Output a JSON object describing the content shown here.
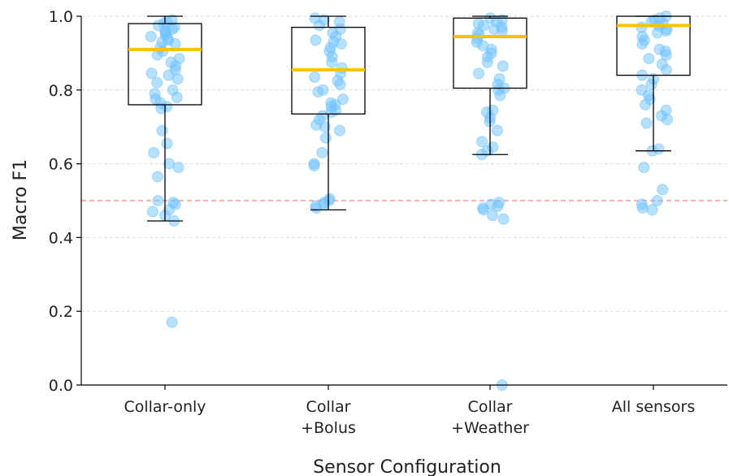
{
  "chart_data": {
    "type": "box",
    "xlabel": "Sensor Configuration",
    "ylabel": "Macro F1",
    "ylim": [
      0,
      1
    ],
    "yticks": [
      "0.0",
      "0.2",
      "0.4",
      "0.6",
      "0.8",
      "1.0"
    ],
    "grid": "horizontal dashed",
    "reference_line": {
      "y": 0.5,
      "style": "dashed",
      "color": "#f08080"
    },
    "colors": {
      "points": "#6ec1ff",
      "median": "#ffc107",
      "box": "#000000",
      "grid": "#dddddd"
    },
    "categories": [
      {
        "label": [
          "Collar-only"
        ],
        "box": {
          "q1": 0.76,
          "median": 0.91,
          "q3": 0.98,
          "whisker_low": 0.445,
          "whisker_high": 1.0
        },
        "points": [
          0.99,
          0.985,
          0.98,
          0.975,
          0.97,
          0.965,
          0.96,
          0.955,
          0.95,
          0.945,
          0.94,
          0.935,
          0.93,
          0.925,
          0.915,
          0.905,
          0.895,
          0.885,
          0.875,
          0.865,
          0.855,
          0.845,
          0.84,
          0.83,
          0.82,
          0.8,
          0.79,
          0.78,
          0.775,
          0.765,
          0.755,
          0.75,
          0.69,
          0.655,
          0.63,
          0.6,
          0.59,
          0.565,
          0.5,
          0.495,
          0.49,
          0.475,
          0.47,
          0.46,
          0.445,
          0.17
        ]
      },
      {
        "label": [
          "Collar",
          "+Bolus"
        ],
        "box": {
          "q1": 0.735,
          "median": 0.855,
          "q3": 0.97,
          "whisker_low": 0.475,
          "whisker_high": 1.0
        },
        "points": [
          0.995,
          0.99,
          0.985,
          0.975,
          0.965,
          0.955,
          0.945,
          0.935,
          0.93,
          0.925,
          0.915,
          0.905,
          0.89,
          0.875,
          0.86,
          0.845,
          0.835,
          0.825,
          0.815,
          0.8,
          0.795,
          0.775,
          0.765,
          0.76,
          0.755,
          0.745,
          0.74,
          0.73,
          0.72,
          0.705,
          0.7,
          0.69,
          0.67,
          0.63,
          0.6,
          0.595,
          0.505,
          0.5,
          0.495,
          0.49,
          0.485,
          0.48
        ]
      },
      {
        "label": [
          "Collar",
          "+Weather"
        ],
        "box": {
          "q1": 0.805,
          "median": 0.945,
          "q3": 0.995,
          "whisker_low": 0.625,
          "whisker_high": 1.0
        },
        "points": [
          0.995,
          0.99,
          0.985,
          0.98,
          0.975,
          0.97,
          0.965,
          0.96,
          0.955,
          0.95,
          0.94,
          0.93,
          0.92,
          0.91,
          0.9,
          0.89,
          0.875,
          0.865,
          0.845,
          0.83,
          0.815,
          0.805,
          0.8,
          0.785,
          0.745,
          0.74,
          0.725,
          0.715,
          0.69,
          0.66,
          0.645,
          0.635,
          0.625,
          0.495,
          0.49,
          0.485,
          0.48,
          0.475,
          0.46,
          0.45,
          0.0
        ]
      },
      {
        "label": [
          "All sensors"
        ],
        "box": {
          "q1": 0.84,
          "median": 0.975,
          "q3": 1.0,
          "whisker_low": 0.635,
          "whisker_high": 1.0
        },
        "points": [
          1.0,
          0.995,
          0.99,
          0.985,
          0.98,
          0.975,
          0.97,
          0.965,
          0.96,
          0.955,
          0.945,
          0.935,
          0.925,
          0.91,
          0.905,
          0.895,
          0.885,
          0.87,
          0.855,
          0.84,
          0.83,
          0.815,
          0.8,
          0.785,
          0.775,
          0.76,
          0.745,
          0.73,
          0.72,
          0.71,
          0.64,
          0.635,
          0.59,
          0.53,
          0.5,
          0.49,
          0.48,
          0.475
        ]
      }
    ]
  }
}
